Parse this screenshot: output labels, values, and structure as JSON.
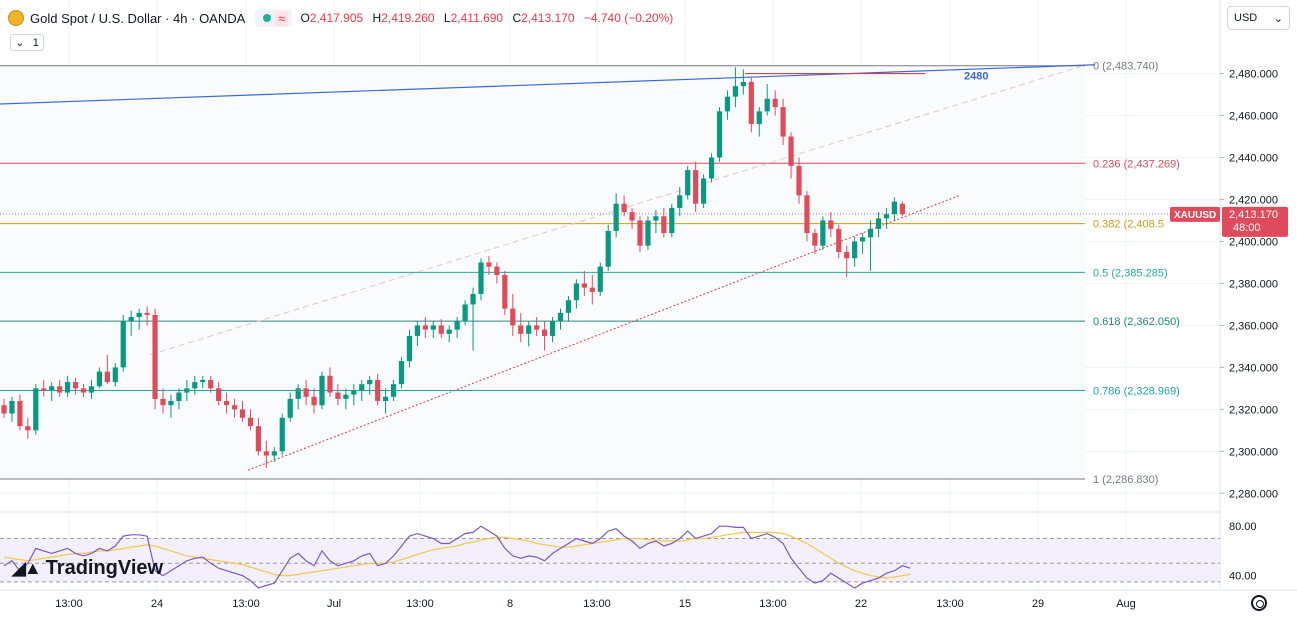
{
  "header": {
    "title": "Gold Spot / U.S. Dollar · 4h · OANDA",
    "open_label": "O",
    "open": "2,417.905",
    "high_label": "H",
    "high": "2,419.260",
    "low_label": "L",
    "low": "2,411.690",
    "close_label": "C",
    "close": "2,413.170",
    "change": "−4.740 (−0.20%)",
    "wave_icon": "≈"
  },
  "toolbar": {
    "layers_icon": "⌄",
    "layers_count": "1",
    "currency": "USD",
    "currency_icon": "⌄"
  },
  "price_label": {
    "symbol": "XAUUSD",
    "price": "2,413.170",
    "countdown": "48:00"
  },
  "brand": {
    "mark": "◢▲",
    "name": "TradingView"
  },
  "colors": {
    "up": "#089981",
    "down": "#e04b5b",
    "trend_blue": "#3c6bd0",
    "dotted": "#d04040"
  },
  "chart_data": [
    {
      "type": "candlestick",
      "symbol": "XAUUSD",
      "timeframe": "4h",
      "ylim": [
        2273,
        2496
      ],
      "y_ticks": [
        2280,
        2300,
        2320,
        2340,
        2360,
        2380,
        2400,
        2420,
        2440,
        2460,
        2480
      ],
      "y_tick_labels": [
        "2,280.000",
        "2,300.000",
        "2,320.000",
        "2,340.000",
        "2,360.000",
        "2,380.000",
        "2,400.000",
        "2,420.000",
        "2,440.000",
        "2,460.000",
        "2,480.000"
      ],
      "x_ticks": [
        "13:00",
        "24",
        "13:00",
        "Jul",
        "13:00",
        "8",
        "13:00",
        "15",
        "13:00",
        "22",
        "13:00",
        "29",
        "Aug"
      ],
      "last_close": 2413.17,
      "fibonacci": [
        {
          "level": "0",
          "price": 2483.74,
          "label": "0 (2,483.740)",
          "color": "#787b86"
        },
        {
          "level": "0.236",
          "price": 2437.269,
          "label": "0.236 (2,437.269)",
          "color": "#e04b5b"
        },
        {
          "level": "0.382",
          "price": 2408.5,
          "label": "0.382 (2,408.5",
          "color": "#d19a1a"
        },
        {
          "level": "0.5",
          "price": 2385.285,
          "label": "0.5 (2,385.285)",
          "color": "#22ab94"
        },
        {
          "level": "0.618",
          "price": 2362.05,
          "label": "0.618 (2,362.050)",
          "color": "#1e8a7a"
        },
        {
          "level": "0.786",
          "price": 2328.969,
          "label": "0.786 (2,328.969)",
          "color": "#1fa3a3"
        },
        {
          "level": "1",
          "price": 2286.83,
          "label": "1 (2,286.830)",
          "color": "#787b86"
        }
      ],
      "annotations": [
        {
          "text": "2480",
          "price": 2480,
          "color": "#3c6bd0"
        }
      ],
      "candles": [
        [
          2322,
          2325,
          2316,
          2318
        ],
        [
          2318,
          2326,
          2314,
          2324
        ],
        [
          2324,
          2327,
          2310,
          2312
        ],
        [
          2312,
          2316,
          2306,
          2310
        ],
        [
          2310,
          2332,
          2308,
          2330
        ],
        [
          2330,
          2334,
          2326,
          2329
        ],
        [
          2329,
          2333,
          2324,
          2331
        ],
        [
          2331,
          2334,
          2326,
          2328
        ],
        [
          2328,
          2336,
          2326,
          2333
        ],
        [
          2333,
          2335,
          2327,
          2330
        ],
        [
          2330,
          2332,
          2326,
          2328
        ],
        [
          2328,
          2334,
          2325,
          2331
        ],
        [
          2331,
          2340,
          2330,
          2338
        ],
        [
          2338,
          2346,
          2332,
          2333
        ],
        [
          2333,
          2342,
          2331,
          2340
        ],
        [
          2340,
          2365,
          2338,
          2362
        ],
        [
          2362,
          2367,
          2355,
          2364
        ],
        [
          2364,
          2368,
          2358,
          2366
        ],
        [
          2366,
          2369,
          2360,
          2365
        ],
        [
          2365,
          2368,
          2320,
          2325
        ],
        [
          2325,
          2330,
          2318,
          2322
        ],
        [
          2322,
          2327,
          2316,
          2324
        ],
        [
          2324,
          2330,
          2320,
          2328
        ],
        [
          2328,
          2334,
          2324,
          2330
        ],
        [
          2330,
          2336,
          2327,
          2333
        ],
        [
          2333,
          2336,
          2330,
          2334
        ],
        [
          2334,
          2336,
          2328,
          2330
        ],
        [
          2330,
          2333,
          2322,
          2324
        ],
        [
          2324,
          2328,
          2318,
          2322
        ],
        [
          2322,
          2325,
          2316,
          2320
        ],
        [
          2320,
          2324,
          2314,
          2316
        ],
        [
          2316,
          2320,
          2310,
          2312
        ],
        [
          2312,
          2316,
          2298,
          2300
        ],
        [
          2300,
          2305,
          2292,
          2298
        ],
        [
          2298,
          2302,
          2295,
          2300
        ],
        [
          2300,
          2318,
          2298,
          2316
        ],
        [
          2316,
          2328,
          2314,
          2325
        ],
        [
          2325,
          2332,
          2320,
          2330
        ],
        [
          2330,
          2334,
          2322,
          2326
        ],
        [
          2326,
          2330,
          2318,
          2322
        ],
        [
          2322,
          2338,
          2320,
          2336
        ],
        [
          2336,
          2340,
          2326,
          2328
        ],
        [
          2328,
          2332,
          2322,
          2325
        ],
        [
          2325,
          2330,
          2320,
          2327
        ],
        [
          2327,
          2332,
          2322,
          2329
        ],
        [
          2329,
          2334,
          2324,
          2332
        ],
        [
          2332,
          2336,
          2327,
          2334
        ],
        [
          2334,
          2337,
          2322,
          2324
        ],
        [
          2324,
          2330,
          2318,
          2326
        ],
        [
          2326,
          2334,
          2324,
          2332
        ],
        [
          2332,
          2345,
          2330,
          2343
        ],
        [
          2343,
          2358,
          2340,
          2355
        ],
        [
          2355,
          2362,
          2350,
          2360
        ],
        [
          2360,
          2364,
          2354,
          2358
        ],
        [
          2358,
          2362,
          2354,
          2360
        ],
        [
          2360,
          2363,
          2354,
          2356
        ],
        [
          2356,
          2360,
          2352,
          2358
        ],
        [
          2358,
          2364,
          2354,
          2362
        ],
        [
          2362,
          2372,
          2360,
          2370
        ],
        [
          2370,
          2378,
          2348,
          2375
        ],
        [
          2375,
          2392,
          2372,
          2390
        ],
        [
          2390,
          2393,
          2384,
          2388
        ],
        [
          2388,
          2390,
          2380,
          2384
        ],
        [
          2384,
          2386,
          2365,
          2368
        ],
        [
          2368,
          2375,
          2355,
          2360
        ],
        [
          2360,
          2366,
          2352,
          2356
        ],
        [
          2356,
          2362,
          2350,
          2360
        ],
        [
          2360,
          2364,
          2355,
          2358
        ],
        [
          2358,
          2362,
          2348,
          2355
        ],
        [
          2355,
          2364,
          2352,
          2362
        ],
        [
          2362,
          2368,
          2358,
          2366
        ],
        [
          2366,
          2374,
          2362,
          2372
        ],
        [
          2372,
          2382,
          2368,
          2380
        ],
        [
          2380,
          2386,
          2374,
          2378
        ],
        [
          2378,
          2384,
          2370,
          2376
        ],
        [
          2376,
          2390,
          2374,
          2388
        ],
        [
          2388,
          2408,
          2386,
          2405
        ],
        [
          2405,
          2423,
          2402,
          2418
        ],
        [
          2418,
          2422,
          2412,
          2414
        ],
        [
          2414,
          2416,
          2406,
          2410
        ],
        [
          2410,
          2412,
          2395,
          2398
        ],
        [
          2398,
          2412,
          2396,
          2410
        ],
        [
          2410,
          2415,
          2404,
          2412
        ],
        [
          2412,
          2416,
          2402,
          2404
        ],
        [
          2404,
          2418,
          2402,
          2416
        ],
        [
          2416,
          2426,
          2412,
          2422
        ],
        [
          2422,
          2436,
          2420,
          2434
        ],
        [
          2434,
          2438,
          2414,
          2418
        ],
        [
          2418,
          2432,
          2416,
          2430
        ],
        [
          2430,
          2442,
          2428,
          2440
        ],
        [
          2440,
          2464,
          2438,
          2462
        ],
        [
          2462,
          2472,
          2458,
          2469
        ],
        [
          2469,
          2483,
          2464,
          2474
        ],
        [
          2474,
          2482,
          2470,
          2476
        ],
        [
          2476,
          2478,
          2452,
          2456
        ],
        [
          2456,
          2464,
          2450,
          2462
        ],
        [
          2462,
          2475,
          2460,
          2468
        ],
        [
          2468,
          2472,
          2460,
          2464
        ],
        [
          2464,
          2468,
          2446,
          2450
        ],
        [
          2450,
          2452,
          2430,
          2436
        ],
        [
          2436,
          2440,
          2418,
          2422
        ],
        [
          2422,
          2424,
          2400,
          2404
        ],
        [
          2404,
          2406,
          2394,
          2398
        ],
        [
          2398,
          2412,
          2396,
          2410
        ],
        [
          2410,
          2414,
          2402,
          2406
        ],
        [
          2406,
          2408,
          2392,
          2395
        ],
        [
          2395,
          2398,
          2383,
          2392
        ],
        [
          2392,
          2402,
          2388,
          2400
        ],
        [
          2400,
          2404,
          2394,
          2402
        ],
        [
          2402,
          2410,
          2386,
          2406
        ],
        [
          2406,
          2414,
          2402,
          2411
        ],
        [
          2411,
          2416,
          2406,
          2413
        ],
        [
          2413,
          2421,
          2410,
          2419
        ],
        [
          2418,
          2419,
          2412,
          2413
        ]
      ]
    },
    {
      "type": "line",
      "name": "RSI",
      "ylim": [
        30,
        85
      ],
      "y_ticks": [
        40,
        80
      ],
      "y_tick_labels": [
        "40.00",
        "80.00"
      ],
      "bands": [
        35,
        50,
        70
      ],
      "series": [
        {
          "values": [
            48,
            52,
            44,
            50,
            62,
            60,
            58,
            60,
            62,
            58,
            56,
            58,
            62,
            60,
            64,
            72,
            73,
            73,
            72,
            44,
            40,
            44,
            48,
            52,
            54,
            55,
            50,
            46,
            44,
            42,
            40,
            36,
            30,
            32,
            34,
            44,
            54,
            58,
            52,
            48,
            60,
            52,
            48,
            50,
            52,
            56,
            58,
            48,
            50,
            56,
            64,
            72,
            74,
            72,
            70,
            66,
            66,
            70,
            74,
            75,
            80,
            76,
            72,
            62,
            56,
            54,
            56,
            55,
            52,
            58,
            62,
            66,
            70,
            68,
            66,
            70,
            76,
            78,
            72,
            68,
            62,
            66,
            68,
            64,
            66,
            70,
            76,
            70,
            72,
            74,
            80,
            80,
            79,
            79,
            70,
            72,
            74,
            71,
            66,
            54,
            46,
            38,
            34,
            36,
            42,
            38,
            34,
            30,
            34,
            36,
            38,
            42,
            44,
            48,
            46
          ]
        },
        {
          "values": [
            55,
            54,
            53,
            52,
            53,
            54,
            55,
            56,
            57,
            58,
            58,
            59,
            60,
            60,
            61,
            62,
            63,
            64,
            65,
            64,
            62,
            60,
            58,
            56,
            55,
            54,
            53,
            52,
            51,
            50,
            49,
            47,
            45,
            43,
            41,
            40,
            40,
            41,
            42,
            43,
            44,
            45,
            46,
            47,
            48,
            49,
            50,
            50,
            50,
            51,
            53,
            55,
            57,
            59,
            61,
            62,
            63,
            64,
            66,
            67,
            69,
            70,
            71,
            71,
            70,
            69,
            68,
            66,
            65,
            64,
            63,
            63,
            64,
            65,
            66,
            67,
            68,
            69,
            70,
            70,
            70,
            69,
            69,
            68,
            68,
            68,
            69,
            70,
            70,
            71,
            72,
            73,
            74,
            75,
            75,
            75,
            75,
            75,
            74,
            72,
            69,
            66,
            62,
            58,
            54,
            50,
            47,
            44,
            42,
            40,
            39,
            38,
            39,
            40,
            41
          ]
        }
      ]
    }
  ]
}
